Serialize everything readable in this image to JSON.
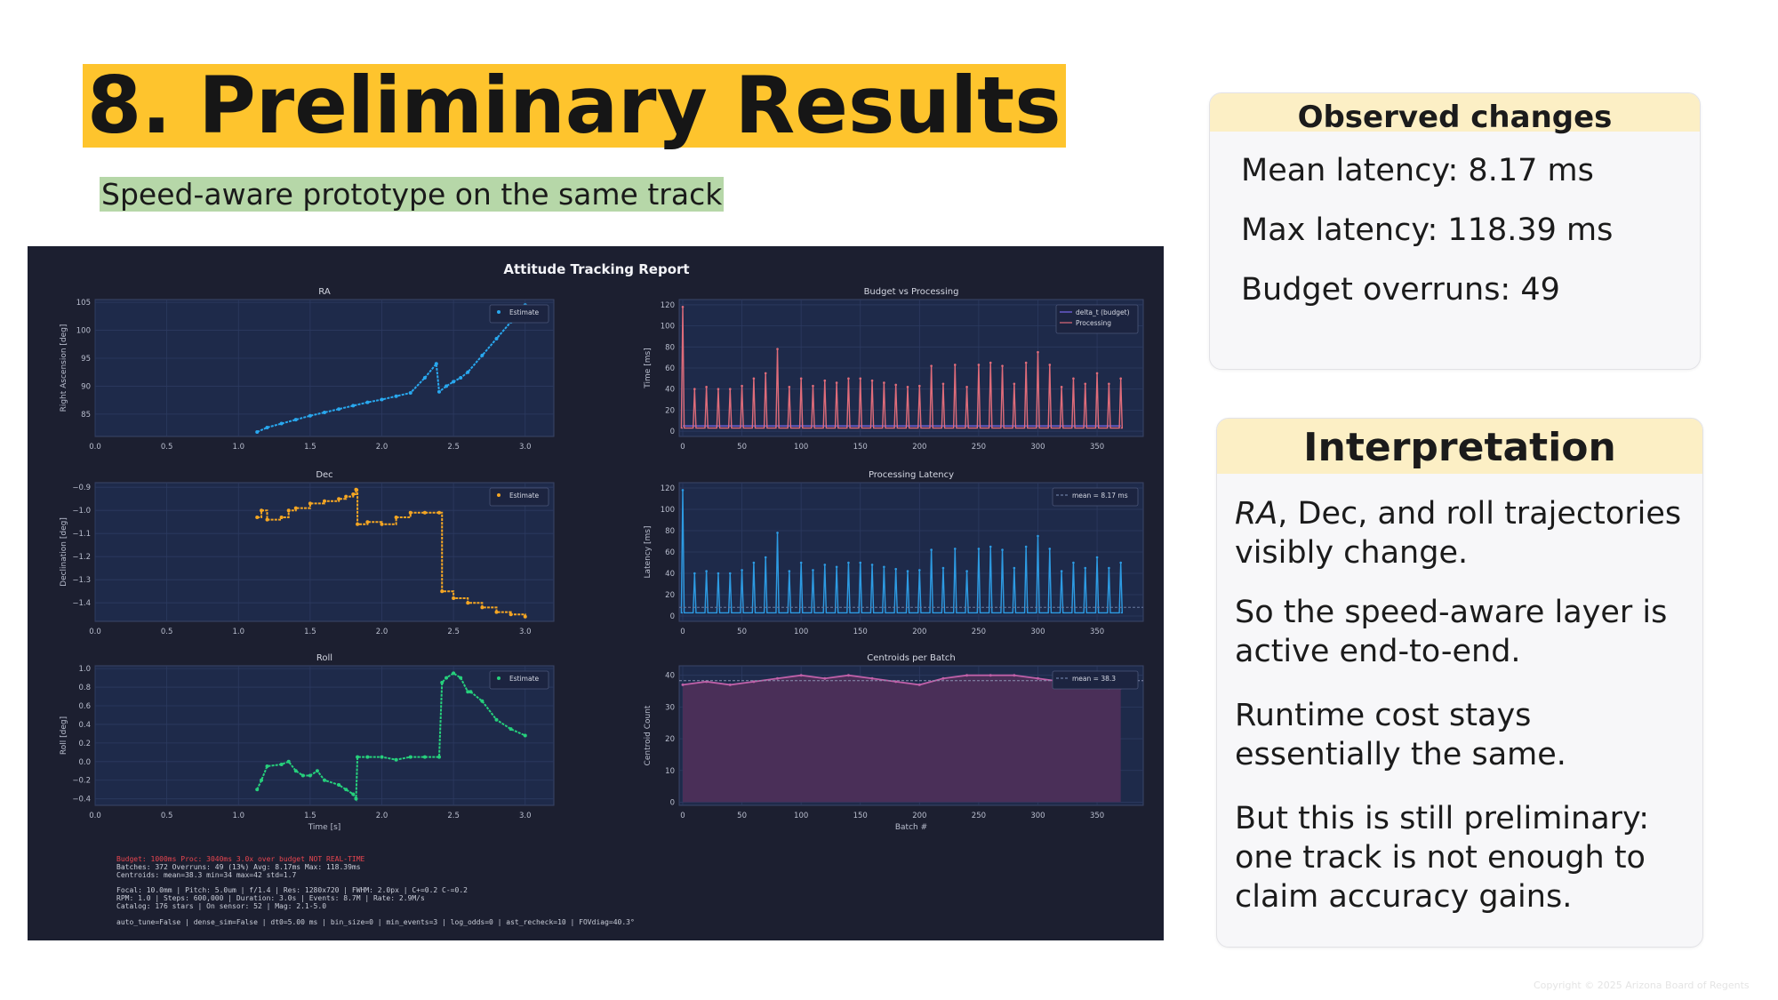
{
  "slide": {
    "title": "8. Preliminary Results",
    "subtitle": "Speed-aware prototype on the same track",
    "copyright": "Copyright © 2025 Arizona Board of Regents"
  },
  "observed": {
    "heading": "Observed changes",
    "items": [
      "Mean latency: 8.17 ms",
      "Max latency: 118.39 ms",
      "Budget overruns: 49"
    ]
  },
  "interpretation": {
    "heading": "Interpretation",
    "items": [
      {
        "em": "RA",
        "rest": ", Dec, and roll trajectories visibly change."
      },
      {
        "em": "",
        "rest": "So the speed-aware layer is active end-to-end."
      },
      {
        "em": "",
        "rest": "Runtime cost stays essentially the same."
      },
      {
        "em": "",
        "rest": "But this is still preliminary: one track is not enough to claim accuracy gains."
      }
    ]
  },
  "report": {
    "title": "Attitude Tracking Report",
    "footer_lines": [
      "Budget: 1000ms  Proc: 3040ms  3.0x over budget  NOT REAL-TIME",
      "Batches: 372  Overruns: 49 (13%)  Avg: 8.17ms  Max: 118.39ms",
      "Centroids: mean=38.3  min=34  max=42  std=1.7",
      "Focal: 10.0mm  |  Pitch: 5.0um  |  f/1.4  |  Res: 1280x720  |  FWHM: 2.0px  |  C+=0.2 C-=0.2",
      "RPM: 1.0  |  Steps: 600,000  |  Duration: 3.0s  |  Events: 8.7M  |  Rate: 2.9M/s",
      "Catalog: 176 stars  |  On sensor: 52  |  Mag: 2.1-5.0",
      "auto_tune=False  |  dense_sim=False  |  dt0=5.00 ms  |  bin_size=0  |  min_events=3  |  log_odds=0  |  ast_recheck=10  |  FOVdiag=40.3°"
    ]
  },
  "chart_data": [
    {
      "type": "scatter",
      "title": "RA",
      "ylabel": "Right Ascension [deg]",
      "xlabel": "",
      "xlim": [
        0,
        3.2
      ],
      "ylim": [
        81,
        105.5
      ],
      "xticks": [
        0.0,
        0.5,
        1.0,
        1.5,
        2.0,
        2.5,
        3.0
      ],
      "xtick_labels": [
        "0.0",
        "0.5",
        "1.0",
        "1.5",
        "2.0",
        "2.5",
        "3.0"
      ],
      "yticks": [
        85,
        90,
        95,
        100,
        105
      ],
      "ytick_labels": [
        "85",
        "90",
        "95",
        "100",
        "105"
      ],
      "color": "#29a8ef",
      "legend": [
        "Estimate"
      ],
      "legend_loc": "upper right",
      "series": [
        {
          "name": "Estimate",
          "x": [
            1.13,
            1.2,
            1.3,
            1.4,
            1.5,
            1.6,
            1.7,
            1.8,
            1.9,
            2.0,
            2.1,
            2.2,
            2.3,
            2.38,
            2.4,
            2.45,
            2.5,
            2.55,
            2.6,
            2.7,
            2.8,
            2.9,
            3.0
          ],
          "y": [
            81.8,
            82.6,
            83.3,
            84.0,
            84.7,
            85.3,
            85.9,
            86.5,
            87.1,
            87.6,
            88.2,
            88.8,
            91.5,
            94.0,
            89.0,
            90.0,
            90.8,
            91.5,
            92.5,
            95.5,
            98.5,
            101.5,
            104.5
          ]
        }
      ]
    },
    {
      "type": "line",
      "title": "Budget vs Processing",
      "ylabel": "Time [ms]",
      "xlabel": "",
      "xlim": [
        -3,
        389
      ],
      "ylim": [
        -5,
        125
      ],
      "xticks": [
        0,
        50,
        100,
        150,
        200,
        250,
        300,
        350
      ],
      "xtick_labels": [
        "0",
        "50",
        "100",
        "150",
        "200",
        "250",
        "300",
        "350"
      ],
      "yticks": [
        0,
        20,
        40,
        60,
        80,
        100,
        120
      ],
      "ytick_labels": [
        "0",
        "20",
        "40",
        "60",
        "80",
        "100",
        "120"
      ],
      "legend": [
        "delta_t (budget)",
        "Processing"
      ],
      "legend_loc": "upper right",
      "series": [
        {
          "name": "delta_t (budget)",
          "color": "#7b68ee",
          "x": [
            0,
            370
          ],
          "y": [
            5,
            5
          ]
        },
        {
          "name": "Processing",
          "color": "#e06c7a",
          "base": 3,
          "peaks_x": [
            0,
            10,
            20,
            30,
            40,
            50,
            60,
            70,
            80,
            90,
            100,
            110,
            120,
            130,
            140,
            150,
            160,
            170,
            180,
            190,
            200,
            210,
            220,
            230,
            240,
            250,
            260,
            270,
            280,
            290,
            300,
            310,
            320,
            330,
            340,
            350,
            360,
            370
          ],
          "peaks_y": [
            118,
            40,
            42,
            40,
            40,
            43,
            50,
            55,
            78,
            42,
            50,
            43,
            48,
            46,
            50,
            50,
            48,
            46,
            44,
            42,
            43,
            62,
            45,
            63,
            42,
            63,
            65,
            62,
            45,
            65,
            75,
            63,
            42,
            50,
            45,
            55,
            45,
            50
          ]
        }
      ]
    },
    {
      "type": "step",
      "title": "Dec",
      "ylabel": "Declination [deg]",
      "xlabel": "",
      "xlim": [
        0,
        3.2
      ],
      "ylim": [
        -1.48,
        -0.88
      ],
      "xticks": [
        0.0,
        0.5,
        1.0,
        1.5,
        2.0,
        2.5,
        3.0
      ],
      "xtick_labels": [
        "0.0",
        "0.5",
        "1.0",
        "1.5",
        "2.0",
        "2.5",
        "3.0"
      ],
      "yticks": [
        -0.9,
        -1.0,
        -1.1,
        -1.2,
        -1.3,
        -1.4
      ],
      "ytick_labels": [
        "−0.9",
        "−1.0",
        "−1.1",
        "−1.2",
        "−1.3",
        "−1.4"
      ],
      "color": "#f5a623",
      "legend": [
        "Estimate"
      ],
      "legend_loc": "upper right",
      "series": [
        {
          "name": "Estimate",
          "x": [
            1.13,
            1.16,
            1.2,
            1.3,
            1.35,
            1.4,
            1.5,
            1.6,
            1.7,
            1.75,
            1.8,
            1.82,
            1.83,
            1.9,
            2.0,
            2.1,
            2.2,
            2.3,
            2.4,
            2.42,
            2.5,
            2.6,
            2.7,
            2.8,
            2.9,
            3.0
          ],
          "y": [
            -1.03,
            -1.0,
            -1.04,
            -1.03,
            -1.0,
            -0.99,
            -0.97,
            -0.96,
            -0.95,
            -0.94,
            -0.93,
            -0.91,
            -1.06,
            -1.05,
            -1.06,
            -1.03,
            -1.01,
            -1.01,
            -1.01,
            -1.35,
            -1.38,
            -1.4,
            -1.42,
            -1.44,
            -1.45,
            -1.46
          ]
        }
      ]
    },
    {
      "type": "line",
      "title": "Processing Latency",
      "ylabel": "Latency [ms]",
      "xlabel": "",
      "xlim": [
        -3,
        389
      ],
      "ylim": [
        -5,
        125
      ],
      "xticks": [
        0,
        50,
        100,
        150,
        200,
        250,
        300,
        350
      ],
      "xtick_labels": [
        "0",
        "50",
        "100",
        "150",
        "200",
        "250",
        "300",
        "350"
      ],
      "yticks": [
        0,
        20,
        40,
        60,
        80,
        100,
        120
      ],
      "ytick_labels": [
        "0",
        "20",
        "40",
        "60",
        "80",
        "100",
        "120"
      ],
      "legend": [
        "mean = 8.17 ms"
      ],
      "legend_loc": "upper right",
      "mean": 8.17,
      "series": [
        {
          "name": "Processing",
          "color": "#2d9be3",
          "base": 3,
          "peaks_x": [
            0,
            10,
            20,
            30,
            40,
            50,
            60,
            70,
            80,
            90,
            100,
            110,
            120,
            130,
            140,
            150,
            160,
            170,
            180,
            190,
            200,
            210,
            220,
            230,
            240,
            250,
            260,
            270,
            280,
            290,
            300,
            310,
            320,
            330,
            340,
            350,
            360,
            370
          ],
          "peaks_y": [
            118,
            40,
            42,
            40,
            40,
            43,
            50,
            55,
            78,
            42,
            50,
            43,
            48,
            46,
            50,
            50,
            48,
            46,
            44,
            42,
            43,
            62,
            45,
            63,
            42,
            63,
            65,
            62,
            45,
            65,
            75,
            63,
            42,
            50,
            45,
            55,
            45,
            50
          ]
        }
      ]
    },
    {
      "type": "scatter",
      "title": "Roll",
      "ylabel": "Roll [deg]",
      "xlabel": "Time [s]",
      "xlim": [
        0,
        3.2
      ],
      "ylim": [
        -0.47,
        1.03
      ],
      "xticks": [
        0.0,
        0.5,
        1.0,
        1.5,
        2.0,
        2.5,
        3.0
      ],
      "xtick_labels": [
        "0.0",
        "0.5",
        "1.0",
        "1.5",
        "2.0",
        "2.5",
        "3.0"
      ],
      "yticks": [
        1.0,
        0.8,
        0.6,
        0.4,
        0.2,
        0.0,
        -0.2,
        -0.4
      ],
      "ytick_labels": [
        "1.0",
        "0.8",
        "0.6",
        "0.4",
        "0.2",
        "0.0",
        "−0.2",
        "−0.4"
      ],
      "color": "#26d07c",
      "legend": [
        "Estimate"
      ],
      "legend_loc": "upper right",
      "series": [
        {
          "name": "Estimate",
          "x": [
            1.13,
            1.16,
            1.2,
            1.3,
            1.35,
            1.4,
            1.45,
            1.5,
            1.55,
            1.6,
            1.7,
            1.75,
            1.8,
            1.82,
            1.83,
            1.9,
            2.0,
            2.1,
            2.2,
            2.3,
            2.4,
            2.42,
            2.45,
            2.5,
            2.55,
            2.6,
            2.62,
            2.7,
            2.8,
            2.9,
            3.0
          ],
          "y": [
            -0.3,
            -0.2,
            -0.05,
            -0.03,
            0.0,
            -0.1,
            -0.15,
            -0.15,
            -0.1,
            -0.2,
            -0.25,
            -0.3,
            -0.35,
            -0.4,
            0.05,
            0.05,
            0.05,
            0.02,
            0.05,
            0.05,
            0.05,
            0.85,
            0.9,
            0.95,
            0.9,
            0.75,
            0.75,
            0.65,
            0.45,
            0.35,
            0.28
          ]
        }
      ]
    },
    {
      "type": "area",
      "title": "Centroids per Batch",
      "ylabel": "Centroid Count",
      "xlabel": "Batch #",
      "xlim": [
        -3,
        389
      ],
      "ylim": [
        -1,
        43
      ],
      "xticks": [
        0,
        50,
        100,
        150,
        200,
        250,
        300,
        350
      ],
      "xtick_labels": [
        "0",
        "50",
        "100",
        "150",
        "200",
        "250",
        "300",
        "350"
      ],
      "yticks": [
        0,
        10,
        20,
        30,
        40
      ],
      "ytick_labels": [
        "0",
        "10",
        "20",
        "30",
        "40"
      ],
      "legend": [
        "mean = 38.3"
      ],
      "legend_loc": "upper right",
      "mean": 38.3,
      "series": [
        {
          "name": "Centroids",
          "color": "#c060a8",
          "x": [
            0,
            20,
            40,
            60,
            80,
            100,
            120,
            140,
            160,
            180,
            200,
            220,
            240,
            260,
            280,
            300,
            320,
            340,
            360,
            370
          ],
          "y": [
            37,
            38,
            37,
            38,
            39,
            40,
            39,
            40,
            39,
            38,
            37,
            39,
            40,
            40,
            40,
            39,
            38,
            37,
            36,
            36
          ]
        }
      ]
    }
  ]
}
